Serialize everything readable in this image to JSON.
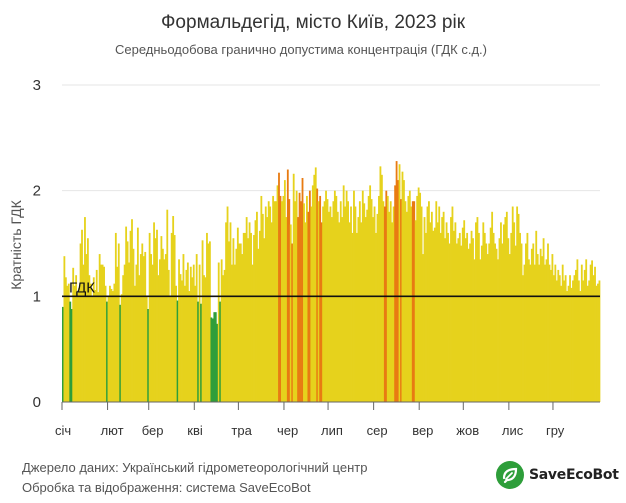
{
  "chart_data": {
    "type": "bar",
    "title": "Формальдегід, місто Київ, 2023 рік",
    "subtitle": "Середньодобова гранично допустима концентрація (ГДК с.д.)",
    "ylabel": "Кратність ГДК",
    "ylim": [
      0,
      3
    ],
    "yticks": [
      "0",
      "1",
      "2",
      "3"
    ],
    "xticks": [
      "січ",
      "лют",
      "бер",
      "кві",
      "тра",
      "чер",
      "лип",
      "сер",
      "вер",
      "жов",
      "лис",
      "гру"
    ],
    "threshold": {
      "label": "ГДК",
      "value": 1
    },
    "colors": {
      "green": "#2e9e3a",
      "yellow": "#e6d21c",
      "orange": "#e87b12",
      "threshold": "#111111",
      "grid": "#e6e6e6"
    },
    "grid": true,
    "values": [
      0.9,
      1.38,
      1.18,
      1.1,
      1.12,
      0.95,
      0.88,
      1.27,
      1.1,
      1.2,
      1.03,
      1.08,
      1.5,
      1.63,
      1.3,
      1.75,
      1.4,
      1.55,
      1.2,
      1.12,
      1.0,
      1.18,
      1.06,
      1.25,
      1.04,
      1.4,
      1.3,
      1.3,
      1.28,
      1.1,
      0.95,
      1.0,
      1.1,
      1.07,
      1.05,
      1.12,
      1.6,
      1.28,
      1.5,
      0.92,
      1.02,
      1.2,
      1.3,
      1.66,
      1.52,
      1.32,
      1.62,
      1.73,
      1.45,
      1.1,
      1.3,
      1.65,
      1.2,
      1.4,
      1.5,
      1.38,
      1.42,
      1.0,
      0.88,
      1.6,
      1.4,
      1.3,
      1.7,
      1.55,
      1.63,
      1.2,
      1.35,
      1.57,
      1.45,
      1.35,
      1.4,
      1.82,
      1.25,
      1.0,
      1.6,
      1.76,
      1.58,
      1.1,
      0.96,
      1.35,
      1.21,
      1.15,
      1.4,
      1.1,
      1.25,
      1.32,
      1.05,
      1.28,
      1.18,
      1.3,
      1.1,
      1.4,
      0.95,
      1.3,
      0.93,
      1.53,
      1.2,
      1.18,
      1.6,
      1.5,
      1.52,
      0.8,
      0.79,
      0.85,
      0.85,
      0.74,
      1.32,
      0.95,
      1.35,
      1.2,
      1.25,
      1.7,
      1.85,
      1.52,
      1.7,
      1.3,
      1.55,
      1.3,
      1.45,
      1.65,
      1.5,
      1.5,
      1.4,
      1.6,
      1.6,
      1.75,
      1.55,
      1.7,
      1.6,
      1.3,
      1.58,
      1.72,
      1.8,
      1.45,
      1.62,
      1.95,
      1.78,
      1.55,
      1.85,
      1.75,
      1.9,
      1.85,
      1.7,
      1.95,
      1.9,
      1.9,
      2.05,
      2.17,
      1.95,
      1.9,
      1.95,
      2.1,
      1.75,
      2.2,
      1.92,
      1.68,
      1.5,
      2.16,
      1.9,
      2.0,
      1.75,
      1.98,
      1.9,
      2.12,
      1.88,
      1.7,
      1.95,
      1.8,
      2.0,
      1.85,
      2.05,
      2.15,
      2.22,
      2.02,
      1.9,
      1.95,
      1.7,
      1.85,
      1.9,
      2.0,
      1.92,
      1.8,
      1.85,
      1.75,
      1.9,
      2.0,
      1.95,
      1.8,
      1.7,
      1.9,
      1.75,
      2.05,
      1.85,
      2.0,
      1.9,
      1.7,
      1.85,
      1.6,
      2.0,
      1.85,
      1.6,
      1.75,
      1.9,
      1.7,
      2.0,
      1.88,
      1.75,
      1.82,
      1.95,
      2.05,
      1.92,
      1.75,
      1.85,
      1.6,
      1.78,
      1.95,
      2.23,
      2.15,
      1.9,
      1.85,
      2.0,
      1.95,
      1.8,
      1.9,
      1.7,
      1.85,
      2.05,
      2.28,
      2.1,
      2.25,
      1.92,
      2.18,
      2.1,
      1.9,
      1.8,
      1.95,
      2.0,
      1.85,
      1.9,
      1.9,
      1.72,
      1.95,
      2.03,
      1.98,
      1.85,
      1.4,
      1.75,
      1.6,
      1.85,
      1.9,
      1.7,
      1.8,
      1.62,
      1.65,
      1.9,
      1.7,
      1.85,
      1.6,
      1.75,
      1.8,
      1.55,
      1.7,
      1.6,
      1.5,
      1.75,
      1.85,
      1.62,
      1.7,
      1.5,
      1.55,
      1.6,
      1.48,
      1.65,
      1.72,
      1.55,
      1.6,
      1.45,
      1.5,
      1.62,
      1.55,
      1.35,
      1.7,
      1.75,
      1.6,
      1.35,
      1.48,
      1.7,
      1.6,
      1.5,
      1.4,
      1.5,
      1.65,
      1.8,
      1.6,
      1.5,
      1.45,
      1.35,
      1.55,
      1.7,
      1.5,
      1.68,
      1.75,
      1.8,
      1.55,
      1.4,
      1.6,
      1.85,
      1.7,
      1.48,
      1.85,
      1.78,
      1.6,
      1.5,
      1.2,
      1.3,
      1.5,
      1.6,
      1.35,
      1.3,
      1.45,
      1.5,
      1.3,
      1.62,
      1.4,
      1.3,
      1.45,
      1.38,
      1.55,
      1.3,
      1.35,
      1.5,
      1.3,
      1.25,
      1.4,
      1.2,
      1.3,
      1.15,
      1.25,
      1.2,
      1.1,
      1.3,
      1.15,
      1.2,
      1.05,
      1.1,
      1.2,
      1.08,
      1.15,
      1.2,
      1.25,
      1.35,
      1.15,
      1.05,
      1.3,
      1.15,
      1.25,
      1.35,
      1.1,
      1.15,
      1.3,
      1.34,
      1.2,
      1.28,
      1.1,
      1.12,
      1.15
    ],
    "orange_days": [
      147,
      148,
      153,
      154,
      156,
      160,
      161,
      162,
      163,
      167,
      168,
      173,
      175,
      176,
      219,
      220,
      226,
      227,
      228,
      230,
      238,
      239
    ],
    "footer": {
      "source": "Джерело даних: Український гідрометеорологічний центр",
      "processing": "Обробка та відображення: система SaveEcoBot"
    },
    "logo": "SaveEcoBot"
  }
}
